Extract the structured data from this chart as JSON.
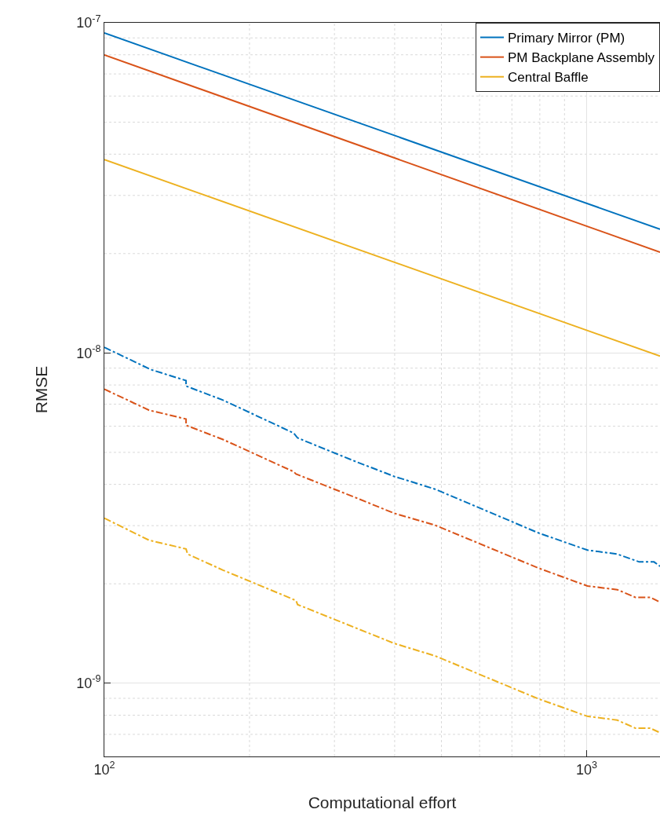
{
  "chart_data": {
    "type": "line",
    "xlabel": "Computational effort",
    "ylabel": "RMSE",
    "log": "xy",
    "grid": true,
    "legend": "top right",
    "line_style": "solid",
    "marker": "none",
    "xlim": [
      100,
      1420
    ],
    "xticks": [
      {
        "value": 100,
        "label": "10$^{2}$"
      },
      {
        "value": 1000,
        "label": "10$^{3}$"
      }
    ],
    "ylim": [
      6e-10,
      1e-07
    ],
    "yticks": [
      {
        "value": 1e-09,
        "label": "10$^{-9}$"
      },
      {
        "value": 1e-08,
        "label": "10$^{-8}$"
      },
      {
        "value": 1e-07,
        "label": "10$^{-7}$"
      }
    ],
    "series": [
      {
        "name": "Primary Mirror (PM)",
        "color": "#0072bd",
        "x": [
          100,
          1420
        ],
        "values": [
          9.31e-08,
          2.37e-08
        ]
      },
      {
        "name": "PM Backplane Assembly",
        "color": "#d95319",
        "x": [
          100,
          1420
        ],
        "values": [
          7.99e-08,
          2.02e-08
        ]
      },
      {
        "name": "Central Baffle",
        "color": "#edb120",
        "x": [
          100,
          1420
        ],
        "values": [
          3.85e-08,
          9.78e-09
        ]
      },
      {
        "color": "#0072bd",
        "line_style": "dashed",
        "x": [
          100,
          124.8,
          147.7,
          147.7,
          176.2,
          247,
          251.6,
          328.4,
          399,
          485,
          795.6,
          1004,
          1158,
          1286,
          1380,
          1420
        ],
        "values": [
          1.04e-08,
          8.91e-09,
          8.25e-09,
          7.94e-09,
          7.2e-09,
          5.72e-09,
          5.53e-09,
          4.72e-09,
          4.23e-09,
          3.87e-09,
          2.85e-09,
          2.53e-09,
          2.46e-09,
          2.33e-09,
          2.33e-09,
          2.26e-09
        ]
      },
      {
        "color": "#d95319",
        "line_style": "dashed",
        "x": [
          100,
          123.8,
          147.7,
          147.7,
          176.2,
          247,
          249.7,
          328.4,
          399,
          485,
          795.6,
          1004,
          1158,
          1262,
          1355,
          1420
        ],
        "values": [
          7.77e-09,
          6.71e-09,
          6.31e-09,
          6.04e-09,
          5.47e-09,
          4.37e-09,
          4.3e-09,
          3.67e-09,
          3.27e-09,
          3.01e-09,
          2.23e-09,
          1.97e-09,
          1.92e-09,
          1.82e-09,
          1.82e-09,
          1.76e-09
        ]
      },
      {
        "color": "#edb120",
        "line_style": "dashed",
        "x": [
          100,
          123.8,
          147.7,
          148.8,
          176.2,
          249.7,
          251.6,
          328.4,
          399,
          485,
          795.6,
          1004,
          1158,
          1262,
          1355,
          1420
        ],
        "values": [
          3.16e-09,
          2.71e-09,
          2.55e-09,
          2.46e-09,
          2.2e-09,
          1.78e-09,
          1.73e-09,
          1.48e-09,
          1.32e-09,
          1.21e-09,
          8.96e-10,
          7.94e-10,
          7.73e-10,
          7.31e-10,
          7.31e-10,
          7.08e-10
        ]
      }
    ]
  }
}
